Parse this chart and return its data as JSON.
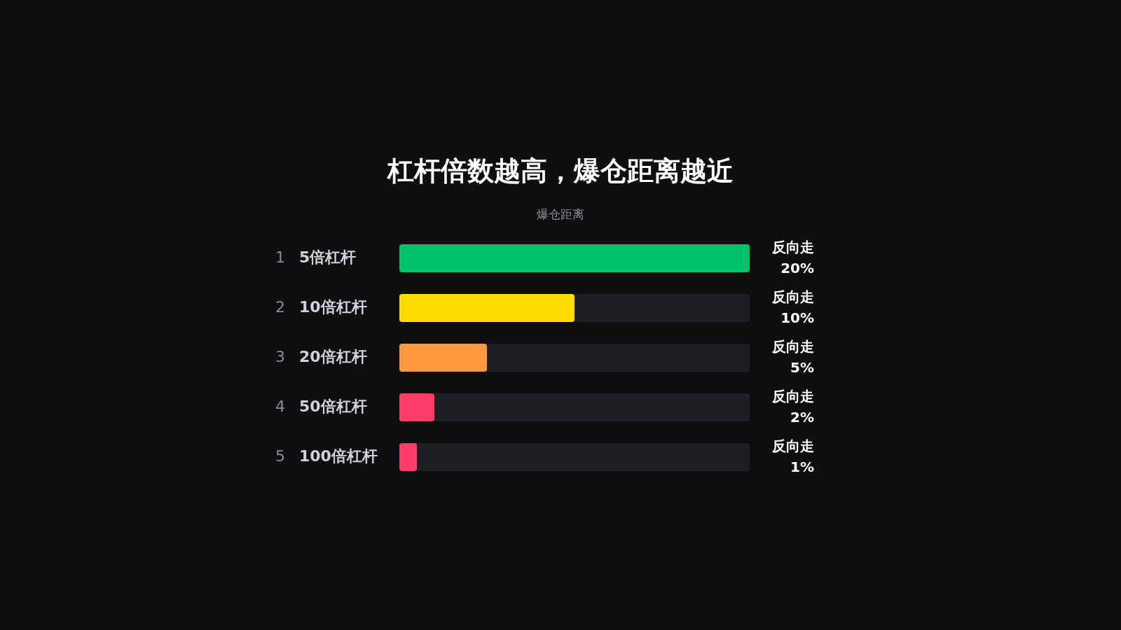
{
  "chart_data": {
    "type": "bar",
    "orientation": "horizontal",
    "title": "杠杆倍数越高，爆仓距离越近",
    "xlabel": "爆仓距离",
    "categories": [
      "5倍杠杆",
      "10倍杠杆",
      "20倍杠杆",
      "50倍杠杆",
      "100倍杠杆"
    ],
    "values": [
      20,
      10,
      5,
      2,
      1
    ],
    "colors": [
      "#02c16b",
      "#fedb00",
      "#ff993d",
      "#ff3d68",
      "#ff3d68"
    ],
    "value_labels": [
      "反向走 20%",
      "反向走 10%",
      "反向走 5%",
      "反向走 2%",
      "反向走 1%"
    ],
    "annotations": [
      "1",
      "2",
      "3",
      "4",
      "5"
    ],
    "xlim": [
      0,
      20
    ]
  }
}
